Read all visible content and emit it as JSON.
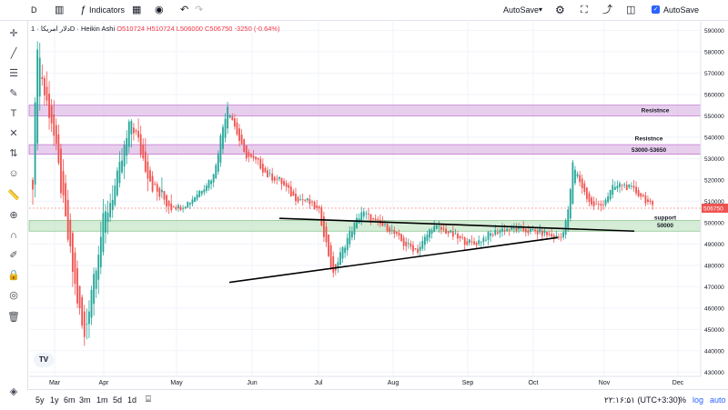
{
  "toolbar": {
    "symbol_short": "D",
    "indicators_label": "Indicators",
    "autosave_dropdown": "AutoSave",
    "autosave_checkbox_label": "AutoSave"
  },
  "legend": {
    "symbol": "دلار امریکا · 1D · Heikin Ashi",
    "open": "O510724",
    "high": "H510724",
    "low": "L506000",
    "close": "C506750",
    "change": "-3250 (-0.64%)"
  },
  "price_axis": {
    "ticks": [
      "590000",
      "580000",
      "570000",
      "560000",
      "550000",
      "540000",
      "530000",
      "520000",
      "510000",
      "500000",
      "490000",
      "480000",
      "470000",
      "460000",
      "450000",
      "440000",
      "430000"
    ],
    "current_price": "506750"
  },
  "time_axis": {
    "ticks": [
      "Mar",
      "Apr",
      "May",
      "Jun",
      "Jul",
      "Aug",
      "Sep",
      "Oct",
      "Nov",
      "Dec"
    ]
  },
  "zones": {
    "resistance_top": "Resistnce",
    "resistance_mid": "Resistnce",
    "resistance_mid_range": "53000-53650",
    "support": "support",
    "support_value": "50000"
  },
  "bottombar": {
    "ranges": [
      "5y",
      "1y",
      "6m",
      "3m",
      "1m",
      "5d",
      "1d"
    ],
    "time": "۲۲:۱۶:۵۱ (UTC+3:30)",
    "pct": "%",
    "log": "log",
    "auto": "auto"
  },
  "watermark": "TV",
  "chart_data": {
    "type": "candlestick",
    "style": "Heikin Ashi",
    "interval": "1D",
    "ylim": [
      428000,
      594000
    ],
    "colors": {
      "up": "#26a69a",
      "down": "#ef5350",
      "resistance_fill": "#e1bee7",
      "support_fill": "#c8e6c9"
    },
    "anchors": [
      [
        0,
        520000
      ],
      [
        2,
        585000
      ],
      [
        5,
        560000
      ],
      [
        8,
        548000
      ],
      [
        11,
        525000
      ],
      [
        14,
        500000
      ],
      [
        18,
        470000
      ],
      [
        22,
        445000
      ],
      [
        25,
        470000
      ],
      [
        30,
        500000
      ],
      [
        36,
        520000
      ],
      [
        42,
        548000
      ],
      [
        47,
        530000
      ],
      [
        52,
        515000
      ],
      [
        57,
        510000
      ],
      [
        62,
        507000
      ],
      [
        67,
        510000
      ],
      [
        72,
        516000
      ],
      [
        77,
        522000
      ],
      [
        80,
        540000
      ],
      [
        83,
        555000
      ],
      [
        86,
        545000
      ],
      [
        90,
        532000
      ],
      [
        96,
        528000
      ],
      [
        100,
        522000
      ],
      [
        105,
        520000
      ],
      [
        111,
        512000
      ],
      [
        117,
        510000
      ],
      [
        122,
        505000
      ],
      [
        126,
        485000
      ],
      [
        128,
        475000
      ],
      [
        131,
        485000
      ],
      [
        135,
        495000
      ],
      [
        140,
        505000
      ],
      [
        146,
        500000
      ],
      [
        152,
        497000
      ],
      [
        158,
        490000
      ],
      [
        164,
        487000
      ],
      [
        170,
        498000
      ],
      [
        176,
        496000
      ],
      [
        182,
        492000
      ],
      [
        188,
        490000
      ],
      [
        194,
        494000
      ],
      [
        200,
        497000
      ],
      [
        206,
        497000
      ],
      [
        212,
        496000
      ],
      [
        218,
        495000
      ],
      [
        222,
        493000
      ],
      [
        225,
        493000
      ],
      [
        228,
        505000
      ],
      [
        230,
        527000
      ],
      [
        232,
        522000
      ],
      [
        235,
        514000
      ],
      [
        238,
        508000
      ],
      [
        242,
        508000
      ],
      [
        247,
        516000
      ],
      [
        251,
        518000
      ],
      [
        256,
        515000
      ],
      [
        260,
        512000
      ],
      [
        264,
        506750
      ]
    ],
    "zones": [
      {
        "name": "resistance-top",
        "from": 550000,
        "to": 555000
      },
      {
        "name": "resistance-mid",
        "from": 532000,
        "to": 536500
      },
      {
        "name": "support",
        "from": 496000,
        "to": 501000
      }
    ],
    "trendlines": [
      {
        "name": "upper-trendline",
        "from": [
          "Jun",
          502000
        ],
        "to": [
          "Nov",
          496000
        ]
      },
      {
        "name": "lower-trendline",
        "from": [
          "Jun",
          472000
        ],
        "to": [
          "Oct",
          493000
        ]
      }
    ]
  }
}
